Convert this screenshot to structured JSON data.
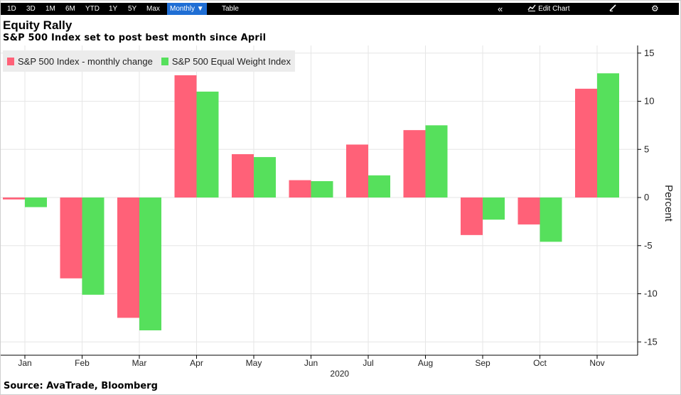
{
  "toolbar": {
    "ranges": [
      "1D",
      "3D",
      "1M",
      "6M",
      "YTD",
      "1Y",
      "5Y",
      "Max"
    ],
    "frequency": "Monthly ▼",
    "table_label": "Table",
    "collapse_glyph": "«",
    "edit_chart_label": "Edit Chart"
  },
  "source": "Source: AvaTrade, Bloomberg",
  "chart_data": {
    "type": "bar",
    "title": "Equity Rally",
    "subtitle": "S&P 500 Index set to post best month since April",
    "categories": [
      "Jan",
      "Feb",
      "Mar",
      "Apr",
      "May",
      "Jun",
      "Jul",
      "Aug",
      "Sep",
      "Oct",
      "Nov"
    ],
    "year_label": "2020",
    "series": [
      {
        "name": "S&P 500 Index - monthly change",
        "color": "#ff6178",
        "values": [
          -0.2,
          -8.4,
          -12.5,
          12.7,
          4.5,
          1.8,
          5.5,
          7.0,
          -3.9,
          -2.8,
          11.3
        ]
      },
      {
        "name": "S&P 500 Equal Weight Index",
        "color": "#56e05c",
        "values": [
          -1.0,
          -10.1,
          -13.8,
          11.0,
          4.2,
          1.7,
          2.3,
          7.5,
          -2.3,
          -4.6,
          12.9
        ]
      }
    ],
    "ylabel": "Percent",
    "ylim": [
      -15,
      15
    ],
    "yticks": [
      15,
      10,
      5,
      0,
      -5,
      -10,
      -15
    ],
    "ytick_labels": [
      "15",
      "10",
      "5",
      "0",
      "-5",
      "-10",
      "-15"
    ],
    "grid": true,
    "legend_position": "top-left",
    "y_axis_side": "right"
  }
}
